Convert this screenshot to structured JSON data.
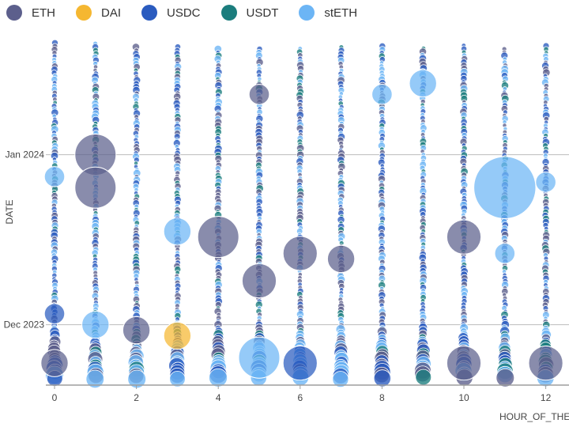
{
  "chart_data": {
    "type": "scatter",
    "encoding": "bubble",
    "xlabel": "HOUR_OF_THE",
    "ylabel": "DATE",
    "x_ticks": [
      0,
      2,
      4,
      6,
      8,
      10,
      12
    ],
    "x_categories": [
      0,
      1,
      2,
      3,
      4,
      5,
      6,
      7,
      8,
      9,
      10,
      11,
      12
    ],
    "y_ticks": [
      {
        "label": "Jan 2024",
        "date": "2024-01-01"
      },
      {
        "label": "Dec 2023",
        "date": "2023-12-01"
      }
    ],
    "y_range": [
      "2023-11-21",
      "2024-01-22"
    ],
    "grid": {
      "x": false,
      "y": true
    },
    "legend_position": "top-left",
    "series": [
      {
        "name": "ETH",
        "color": "#5c5f8c"
      },
      {
        "name": "DAI",
        "color": "#f5b731"
      },
      {
        "name": "USDC",
        "color": "#2a5bbf"
      },
      {
        "name": "USDT",
        "color": "#1b7d7d"
      },
      {
        "name": "stETH",
        "color": "#6cb5f5"
      }
    ],
    "highlight_points": [
      {
        "hour": 0,
        "date": "2023-12-28",
        "series": "stETH",
        "size": 2
      },
      {
        "hour": 0,
        "date": "2023-12-03",
        "series": "USDC",
        "size": 2
      },
      {
        "hour": 0,
        "date": "2023-11-24",
        "series": "ETH",
        "size": 3
      },
      {
        "hour": 1,
        "date": "2024-01-01",
        "series": "ETH",
        "size": 5
      },
      {
        "hour": 1,
        "date": "2023-12-26",
        "series": "ETH",
        "size": 5
      },
      {
        "hour": 1,
        "date": "2023-12-01",
        "series": "stETH",
        "size": 3
      },
      {
        "hour": 2,
        "date": "2023-11-30",
        "series": "ETH",
        "size": 3
      },
      {
        "hour": 3,
        "date": "2023-12-18",
        "series": "stETH",
        "size": 3
      },
      {
        "hour": 3,
        "date": "2023-11-29",
        "series": "DAI",
        "size": 3
      },
      {
        "hour": 4,
        "date": "2023-12-17",
        "series": "ETH",
        "size": 5
      },
      {
        "hour": 5,
        "date": "2024-01-12",
        "series": "ETH",
        "size": 2
      },
      {
        "hour": 5,
        "date": "2023-12-09",
        "series": "ETH",
        "size": 4
      },
      {
        "hour": 5,
        "date": "2023-11-25",
        "series": "stETH",
        "size": 5
      },
      {
        "hour": 6,
        "date": "2023-12-14",
        "series": "ETH",
        "size": 4
      },
      {
        "hour": 6,
        "date": "2023-11-24",
        "series": "USDC",
        "size": 4
      },
      {
        "hour": 7,
        "date": "2023-12-13",
        "series": "ETH",
        "size": 3
      },
      {
        "hour": 8,
        "date": "2024-01-12",
        "series": "stETH",
        "size": 2
      },
      {
        "hour": 9,
        "date": "2024-01-14",
        "series": "stETH",
        "size": 3
      },
      {
        "hour": 10,
        "date": "2023-12-17",
        "series": "ETH",
        "size": 4
      },
      {
        "hour": 10,
        "date": "2023-11-24",
        "series": "ETH",
        "size": 4
      },
      {
        "hour": 11,
        "date": "2023-12-26",
        "series": "stETH",
        "size": 8
      },
      {
        "hour": 11,
        "date": "2023-12-14",
        "series": "stETH",
        "size": 2
      },
      {
        "hour": 12,
        "date": "2023-12-27",
        "series": "stETH",
        "size": 2
      },
      {
        "hour": 12,
        "date": "2023-11-24",
        "series": "ETH",
        "size": 4
      }
    ]
  }
}
